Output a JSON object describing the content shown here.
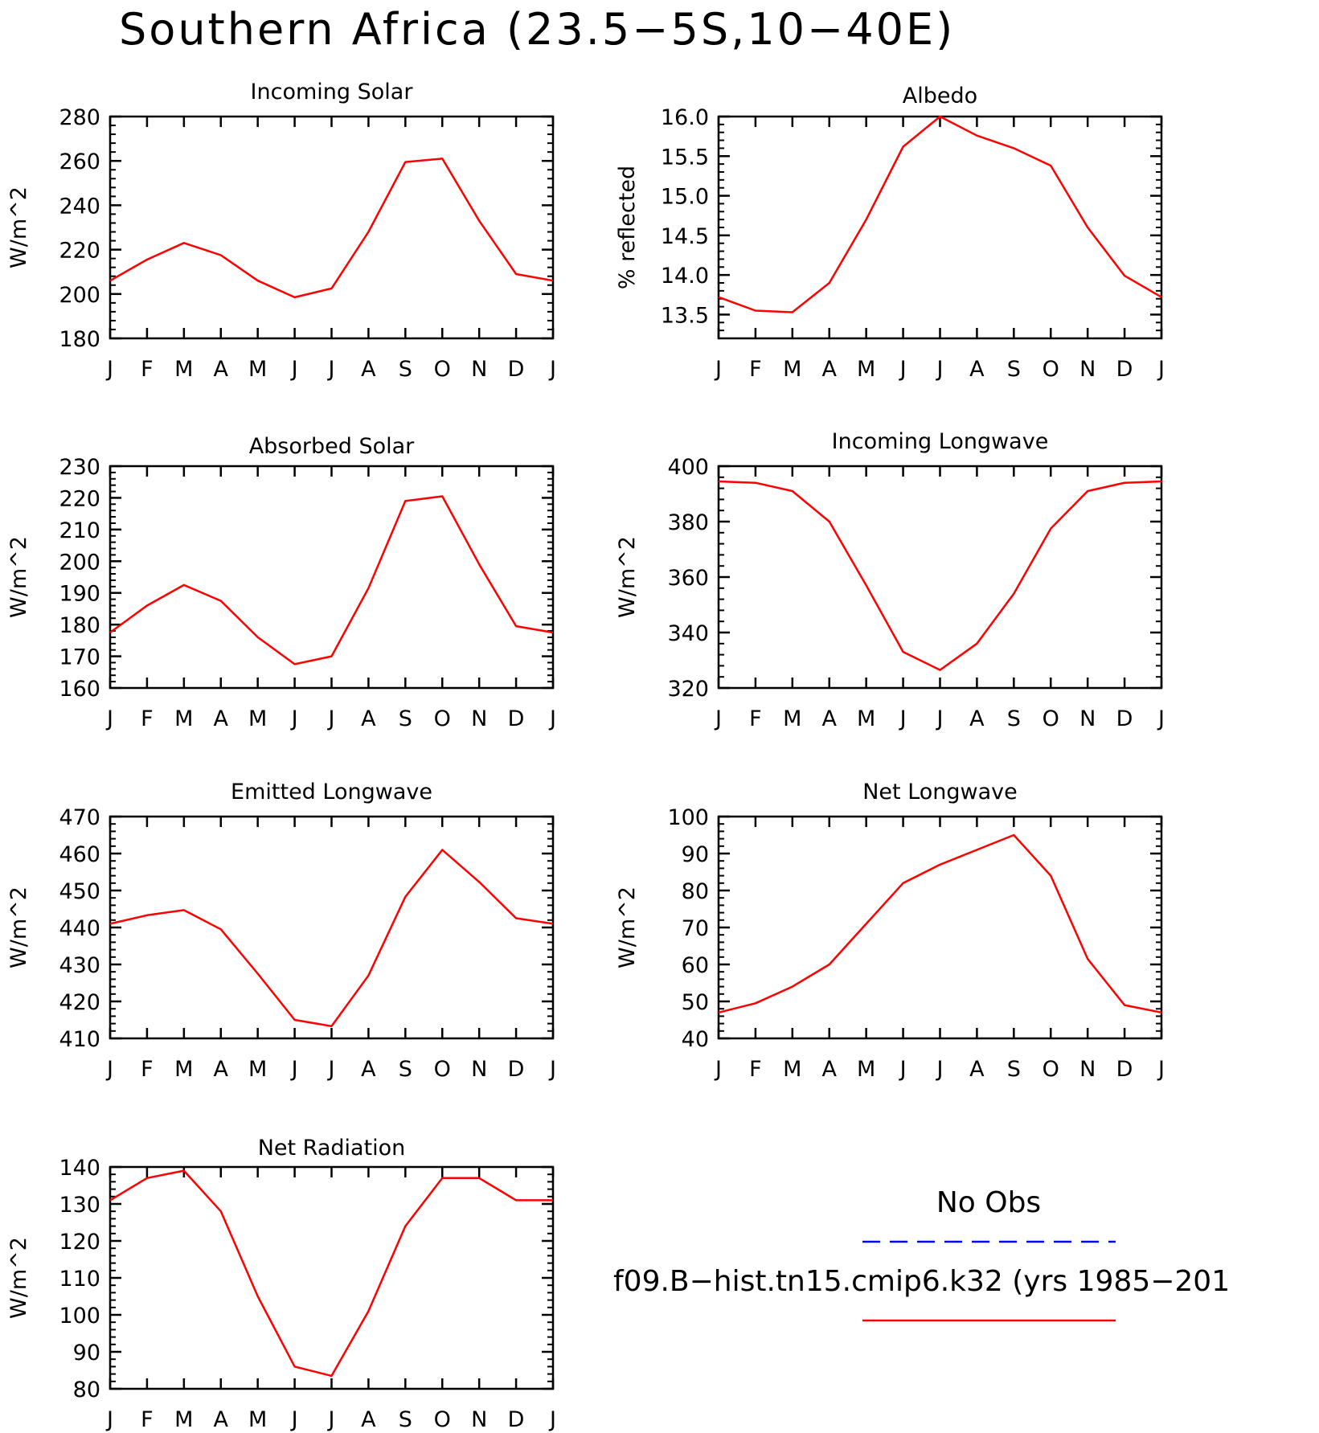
{
  "figure": {
    "title": "Southern Africa (23.5−5S,10−40E)",
    "line_color": "#ff0000",
    "obs_color": "#0000ff"
  },
  "legend": {
    "obs_label": "No Obs",
    "model_label": "f09.B−hist.tn15.cmip6.k32 (yrs 1985−201"
  },
  "chart_data": [
    {
      "type": "line",
      "title": "Incoming Solar",
      "ylabel": "W/m^2",
      "categories": [
        "J",
        "F",
        "M",
        "A",
        "M",
        "J",
        "J",
        "A",
        "S",
        "O",
        "N",
        "D",
        "J"
      ],
      "ylim": [
        180,
        280
      ],
      "yticks": [
        "180",
        "200",
        "220",
        "240",
        "260",
        "280"
      ],
      "series": [
        {
          "values": [
            206,
            215.5,
            223,
            217.5,
            206,
            198.5,
            202.5,
            228,
            259.5,
            261,
            233,
            209,
            206
          ]
        }
      ]
    },
    {
      "type": "line",
      "title": "Albedo",
      "ylabel": "% reflected",
      "categories": [
        "J",
        "F",
        "M",
        "A",
        "M",
        "J",
        "J",
        "A",
        "S",
        "O",
        "N",
        "D",
        "J"
      ],
      "ylim": [
        13.2,
        16.0
      ],
      "yticks": [
        "13.5",
        "14.0",
        "14.5",
        "15.0",
        "15.5",
        "16.0"
      ],
      "series": [
        {
          "values": [
            13.72,
            13.55,
            13.53,
            13.9,
            14.7,
            15.62,
            16.0,
            15.76,
            15.6,
            15.38,
            14.6,
            13.99,
            13.72
          ]
        }
      ]
    },
    {
      "type": "line",
      "title": "Absorbed Solar",
      "ylabel": "W/m^2",
      "categories": [
        "J",
        "F",
        "M",
        "A",
        "M",
        "J",
        "J",
        "A",
        "S",
        "O",
        "N",
        "D",
        "J"
      ],
      "ylim": [
        160,
        230
      ],
      "yticks": [
        "160",
        "170",
        "180",
        "190",
        "200",
        "210",
        "220",
        "230"
      ],
      "series": [
        {
          "values": [
            177.5,
            186,
            192.5,
            187.5,
            176,
            167.5,
            170,
            191.5,
            219,
            220.5,
            199,
            179.5,
            177.5
          ]
        }
      ]
    },
    {
      "type": "line",
      "title": "Incoming Longwave",
      "ylabel": "W/m^2",
      "categories": [
        "J",
        "F",
        "M",
        "A",
        "M",
        "J",
        "J",
        "A",
        "S",
        "O",
        "N",
        "D",
        "J"
      ],
      "ylim": [
        320,
        400
      ],
      "yticks": [
        "320",
        "340",
        "360",
        "380",
        "400"
      ],
      "series": [
        {
          "values": [
            394.5,
            394,
            391,
            380,
            357,
            333,
            326.5,
            336,
            354,
            377.5,
            391,
            394,
            394.5
          ]
        }
      ]
    },
    {
      "type": "line",
      "title": "Emitted Longwave",
      "ylabel": "W/m^2",
      "categories": [
        "J",
        "F",
        "M",
        "A",
        "M",
        "J",
        "J",
        "A",
        "S",
        "O",
        "N",
        "D",
        "J"
      ],
      "ylim": [
        410,
        470
      ],
      "yticks": [
        "410",
        "420",
        "430",
        "440",
        "450",
        "460",
        "470"
      ],
      "series": [
        {
          "values": [
            441,
            443.3,
            444.7,
            439.5,
            427.5,
            415,
            413.3,
            427,
            448.3,
            461,
            452.3,
            442.5,
            441
          ]
        }
      ]
    },
    {
      "type": "line",
      "title": "Net Longwave",
      "ylabel": "W/m^2",
      "categories": [
        "J",
        "F",
        "M",
        "A",
        "M",
        "J",
        "J",
        "A",
        "S",
        "O",
        "N",
        "D",
        "J"
      ],
      "ylim": [
        40,
        100
      ],
      "yticks": [
        "40",
        "50",
        "60",
        "70",
        "80",
        "90",
        "100"
      ],
      "series": [
        {
          "values": [
            47,
            49.5,
            54,
            60,
            71,
            82,
            87,
            91,
            95,
            84,
            61.5,
            49,
            47
          ]
        }
      ]
    },
    {
      "type": "line",
      "title": "Net Radiation",
      "ylabel": "W/m^2",
      "categories": [
        "J",
        "F",
        "M",
        "A",
        "M",
        "J",
        "J",
        "A",
        "S",
        "O",
        "N",
        "D",
        "J"
      ],
      "ylim": [
        80,
        140
      ],
      "yticks": [
        "80",
        "90",
        "100",
        "110",
        "120",
        "130",
        "140"
      ],
      "series": [
        {
          "values": [
            131,
            137,
            139,
            128,
            105,
            86,
            83.5,
            101,
            124,
            137,
            137,
            131,
            131
          ]
        }
      ]
    }
  ]
}
